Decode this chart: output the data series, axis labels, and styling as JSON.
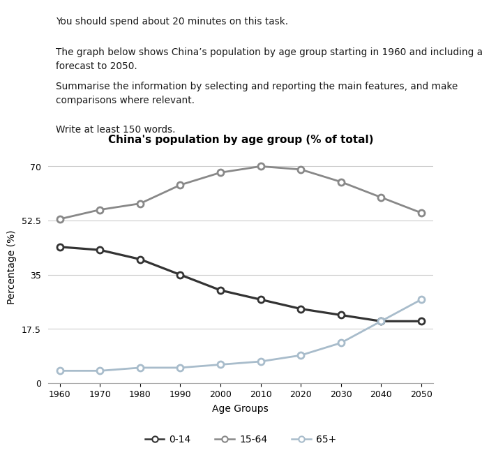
{
  "title": "China's population by age group (% of total)",
  "xlabel": "Age Groups",
  "ylabel": "Percentage (%)",
  "years": [
    1960,
    1970,
    1980,
    1990,
    2000,
    2010,
    2020,
    2030,
    2040,
    2050
  ],
  "series": {
    "0-14": [
      44,
      43,
      40,
      35,
      30,
      27,
      24,
      22,
      20,
      20
    ],
    "15-64": [
      53,
      56,
      58,
      64,
      68,
      70,
      69,
      65,
      60,
      55
    ],
    "65+": [
      4,
      4,
      5,
      5,
      6,
      7,
      9,
      13,
      20,
      27
    ]
  },
  "colors": {
    "0-14": "#333333",
    "15-64": "#888888",
    "65+": "#a8bccb"
  },
  "yticks": [
    0,
    17.5,
    35,
    52.5,
    70
  ],
  "ylim": [
    0,
    75
  ],
  "xlim": [
    1957,
    2053
  ],
  "background_color": "#ffffff",
  "text_blocks": [
    "You should spend about 20 minutes on this task.",
    "The graph below shows China’s population by age group starting in 1960 and including a\nforecast to 2050.",
    "Summarise the information by selecting and reporting the main features, and make\ncomparisons where relevant.",
    "Write at least 150 words."
  ]
}
